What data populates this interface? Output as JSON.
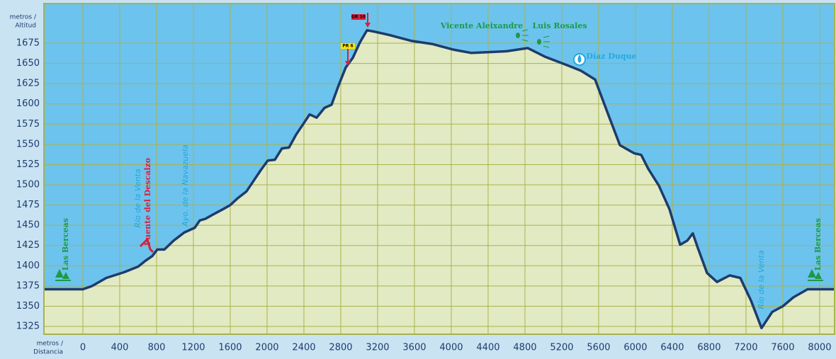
{
  "chart_data": {
    "type": "area",
    "y_label": [
      "metros /",
      "Altitud"
    ],
    "x_label": [
      "metros /",
      "Distancia"
    ],
    "x": [
      -420,
      0,
      100,
      254,
      446,
      600,
      677,
      754,
      808,
      885,
      985,
      1100,
      1215,
      1269,
      1331,
      1408,
      1523,
      1600,
      1677,
      1777,
      1854,
      1931,
      2008,
      2085,
      2162,
      2238,
      2315,
      2392,
      2462,
      2538,
      2623,
      2700,
      2777,
      2854,
      2931,
      3008,
      3085,
      3177,
      3331,
      3562,
      3792,
      4023,
      4215,
      4408,
      4600,
      4831,
      5023,
      5254,
      5408,
      5562,
      5700,
      5831,
      5985,
      6062,
      6138,
      6254,
      6369,
      6485,
      6562,
      6623,
      6677,
      6777,
      6885,
      7023,
      7138,
      7254,
      7369,
      7485,
      7600,
      7715,
      7869,
      8160
    ],
    "values": [
      1371,
      1371,
      1375,
      1385,
      1392,
      1399,
      1406,
      1412,
      1420,
      1420,
      1431,
      1441,
      1447,
      1456,
      1458,
      1463,
      1470,
      1475,
      1483,
      1492,
      1505,
      1518,
      1530,
      1531,
      1545,
      1546,
      1562,
      1575,
      1587,
      1583,
      1595,
      1599,
      1623,
      1645,
      1657,
      1676,
      1691,
      1689,
      1685,
      1678,
      1674,
      1667,
      1663,
      1664,
      1665,
      1669,
      1658,
      1648,
      1641,
      1630,
      1588,
      1549,
      1539,
      1537,
      1520,
      1499,
      1470,
      1426,
      1431,
      1440,
      1422,
      1391,
      1380,
      1388,
      1385,
      1357,
      1323,
      1343,
      1350,
      1361,
      1371,
      1371
    ],
    "line_color": "#1f3b6b",
    "fill_color": "#e2eac3",
    "sky_color": "#6cc3ee",
    "xlim": [
      -423,
      8162
    ],
    "ylim": [
      1315.4,
      1724
    ],
    "xticks": [
      0,
      400,
      800,
      1200,
      1600,
      2000,
      2400,
      2800,
      3200,
      3600,
      4000,
      4400,
      4800,
      5200,
      5600,
      6000,
      6400,
      6800,
      7200,
      7600,
      8000
    ],
    "yticks": [
      1325,
      1350,
      1375,
      1400,
      1425,
      1450,
      1475,
      1500,
      1525,
      1550,
      1575,
      1600,
      1625,
      1650,
      1675
    ],
    "grid": true,
    "annotations": [
      "Las Berceas",
      "Río de la Venta",
      "Puente del Descalzo",
      "Ayo. de la Navazuela",
      "PR 6",
      "GR 10",
      "Vicente Aleixandre",
      "Luis Rosales",
      "Díaz Duque",
      "Río de la Venta",
      "Las Berceas"
    ]
  }
}
